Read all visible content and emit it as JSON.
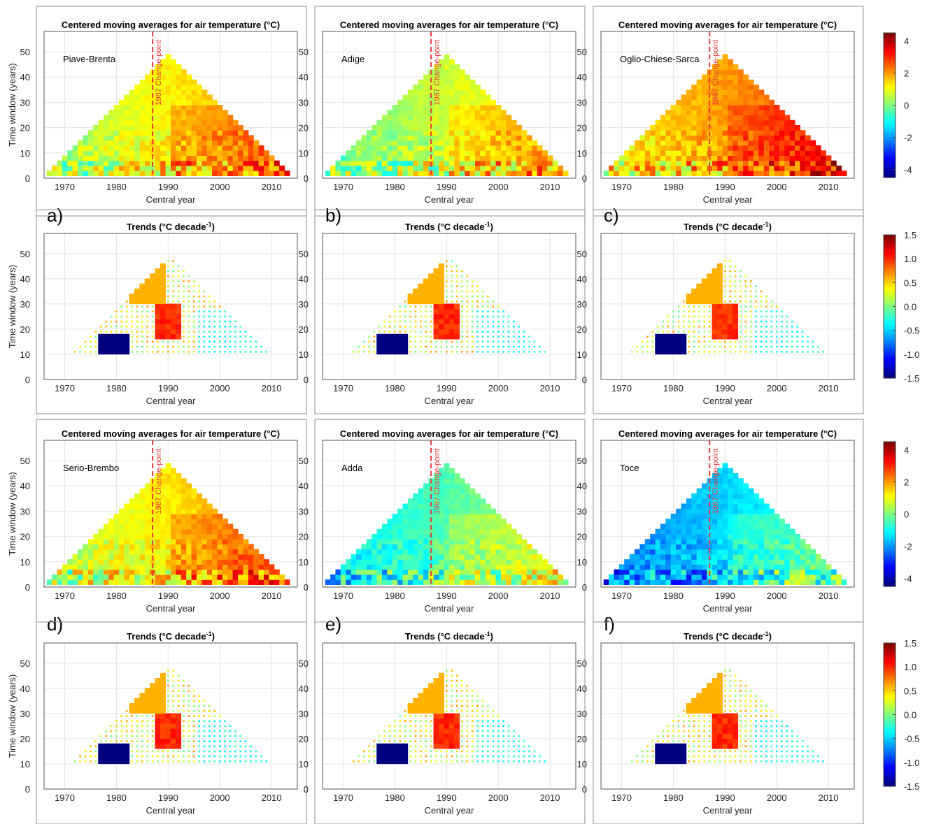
{
  "chart_data": {
    "type": "heatmap",
    "description_note": "",
    "labels": {
      "avg_title": "Centered moving averages for air temperature (°C)",
      "trend_title_main": "Trends (°C decade",
      "trend_title_sup": "-1",
      "trend_title_end": ")",
      "xlabel": "Central year",
      "ylabel": "Time window (years)",
      "changepoint": "1987 Change-point"
    },
    "avg_axes": {
      "xlim": [
        1966,
        2015
      ],
      "ylim": [
        0,
        58
      ],
      "xticks": [
        "1970",
        "1980",
        "1990",
        "2000",
        "2010"
      ],
      "yticks": [
        "0",
        "10",
        "20",
        "30",
        "40",
        "50"
      ],
      "changepoint_year": 1987
    },
    "trend_axes": {
      "xlim": [
        1966,
        2015
      ],
      "ylim": [
        0,
        58
      ],
      "xticks": [
        "1970",
        "1980",
        "1990",
        "2000",
        "2010"
      ],
      "yticks": [
        "0",
        "10",
        "20",
        "30",
        "40",
        "50"
      ]
    },
    "avg_colorbar": {
      "range": [
        -4.5,
        4.5
      ],
      "ticks": [
        "4",
        "2",
        "0",
        "-2",
        "-4"
      ]
    },
    "trend_colorbar": {
      "range": [
        -1.5,
        1.5
      ],
      "ticks": [
        "1.5",
        "1.0",
        "0.5",
        "0.0",
        "-0.5",
        "-1.0",
        "-1.5"
      ]
    },
    "grid": true,
    "panels": [
      {
        "letter": "a)",
        "basin": "Piave-Brenta",
        "avg_offset": 1.2
      },
      {
        "letter": "b)",
        "basin": "Adige",
        "avg_offset": 0.7
      },
      {
        "letter": "c)",
        "basin": "Oglio-Chiese-Sarca",
        "avg_offset": 2.0
      },
      {
        "letter": "d)",
        "basin": "Serio-Brembo",
        "avg_offset": 1.3
      },
      {
        "letter": "e)",
        "basin": "Adda",
        "avg_offset": -0.4
      },
      {
        "letter": "f)",
        "basin": "Toce",
        "avg_offset": -1.5
      }
    ]
  }
}
